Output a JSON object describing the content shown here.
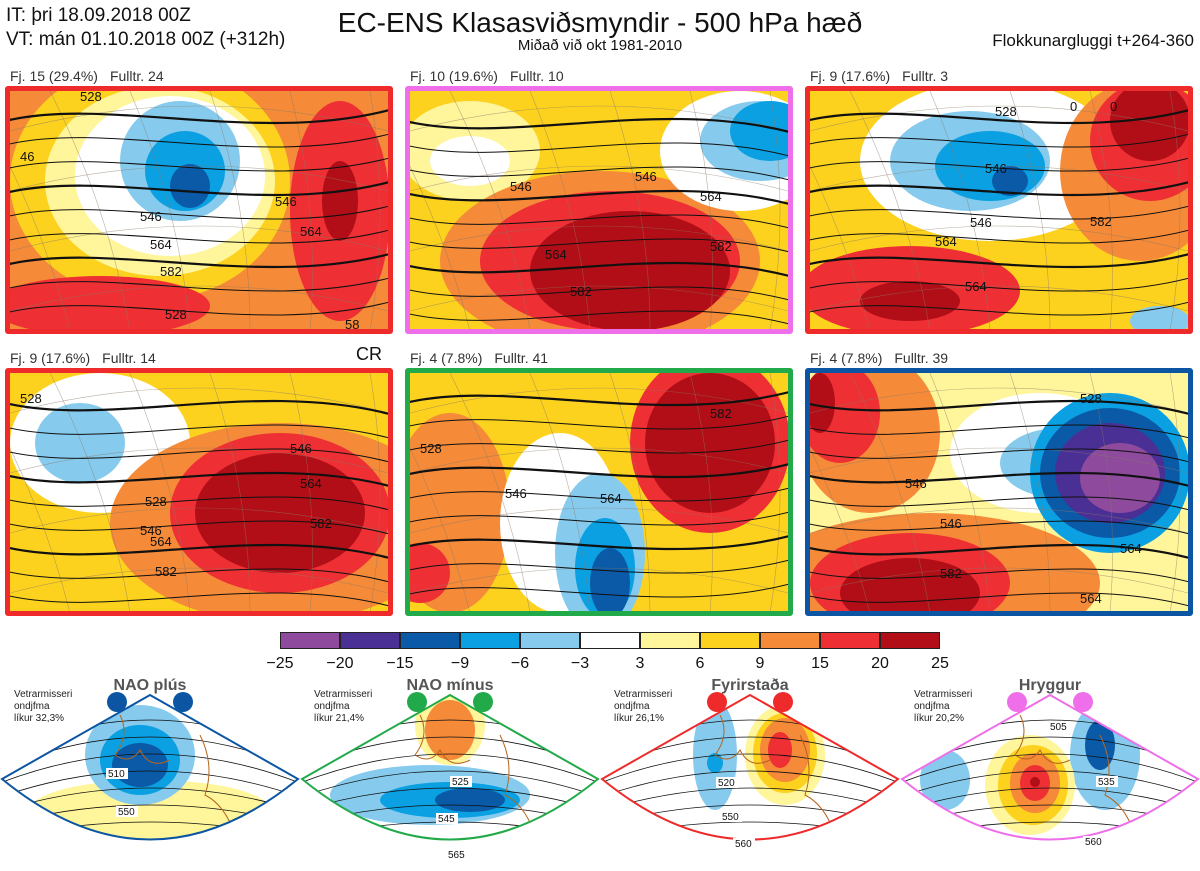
{
  "header": {
    "issue_time": "IT: þri 18.09.2018 00Z",
    "valid_time": "VT: mán 01.10.2018 00Z  (+312h)",
    "title": "EC-ENS Klasasviðsmyndir - 500 hPa hæð",
    "subtitle": "Miðað við okt 1981-2010",
    "window": "Flokkunargluggi t+264-360"
  },
  "panels": [
    {
      "cluster": "Fj. 15 (29.4%)",
      "representative": "Fulltr. 24",
      "regime_color": "#ee2a2a",
      "contours": [
        "528",
        "546",
        "564",
        "582",
        "528",
        "546",
        "564",
        "46",
        "58"
      ]
    },
    {
      "cluster": "Fj. 10 (19.6%)",
      "representative": "Fulltr. 10",
      "regime_color": "#ee6fe9",
      "contours": [
        "546",
        "546",
        "564",
        "564",
        "582",
        "582"
      ]
    },
    {
      "cluster": "Fj. 9 (17.6%)",
      "representative": "Fulltr. 3",
      "regime_color": "#ee2a2a",
      "contours": [
        "528",
        "546",
        "564",
        "564",
        "582",
        "546",
        "0",
        "0"
      ]
    },
    {
      "cluster": "Fj. 9 (17.6%)",
      "representative": "Fulltr. 14",
      "regime_color": "#ee2a2a",
      "contours": [
        "528",
        "528",
        "546",
        "564",
        "582",
        "546",
        "564",
        "582"
      ]
    },
    {
      "cluster": "Fj. 4 (7.8%)",
      "representative": "Fulltr. 41",
      "regime_color": "#22aa4a",
      "contours": [
        "528",
        "546",
        "564",
        "582"
      ]
    },
    {
      "cluster": "Fj. 4 (7.8%)",
      "representative": "Fulltr. 39",
      "regime_color": "#0b55a3",
      "contours": [
        "546",
        "564",
        "582",
        "546",
        "564",
        "528"
      ]
    }
  ],
  "cr_label": "CR",
  "colorbar": {
    "ticks": [
      "−25",
      "−20",
      "−15",
      "−9",
      "−6",
      "−3",
      "3",
      "6",
      "9",
      "15",
      "20",
      "25"
    ],
    "colors": [
      "#8e4a9c",
      "#4a2f94",
      "#0a5aa8",
      "#0aa0e2",
      "#86cbee",
      "#ffffff",
      "#fff59a",
      "#fcd21f",
      "#f58a38",
      "#ee2f34",
      "#b20e17"
    ]
  },
  "regimes": [
    {
      "name": "NAO plús",
      "season": "Vetrarmisseri",
      "months": "ondjfma",
      "prob": "líkur 32,3%",
      "color": "#0b55a3",
      "labels": [
        "510",
        "550"
      ]
    },
    {
      "name": "NAO mínus",
      "season": "Vetrarmisseri",
      "months": "ondjfma",
      "prob": "líkur 21,4%",
      "color": "#22aa4a",
      "labels": [
        "525",
        "545",
        "565"
      ]
    },
    {
      "name": "Fyrirstaða",
      "season": "Vetrarmisseri",
      "months": "ondjfma",
      "prob": "líkur 26,1%",
      "color": "#ee2a2a",
      "labels": [
        "520",
        "550",
        "560"
      ]
    },
    {
      "name": "Hryggur",
      "season": "Vetrarmisseri",
      "months": "ondjfma",
      "prob": "líkur 20,2%",
      "color": "#ee6fe9",
      "labels": [
        "505",
        "535",
        "560"
      ]
    }
  ]
}
